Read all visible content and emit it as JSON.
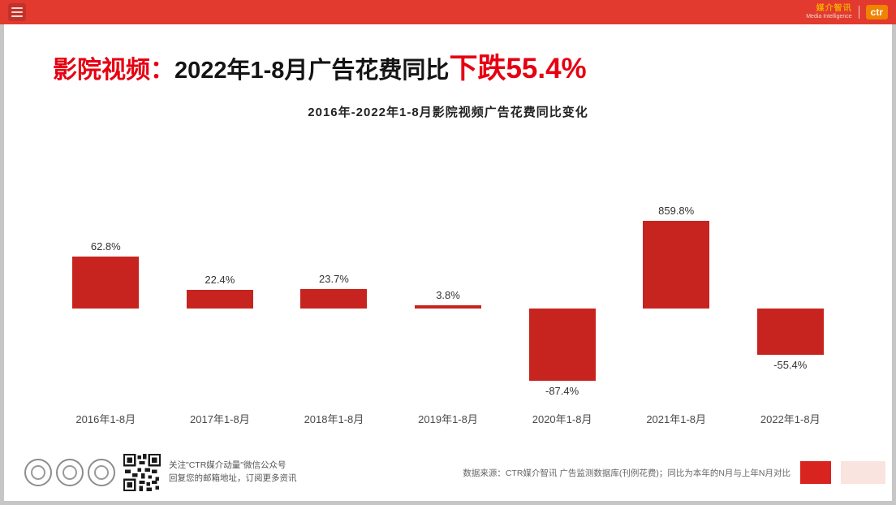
{
  "header": {
    "brand_cn": "媒介智讯",
    "brand_en": "Media Intelligence",
    "logo_text": "ctr"
  },
  "title": {
    "prefix": "影院视频：",
    "middle": "2022年1-8月广告花费同比",
    "highlight": "下跌55.4%"
  },
  "chart_data": {
    "type": "bar",
    "title": "2016年-2022年1-8月影院视频广告花费同比变化",
    "categories": [
      "2016年1-8月",
      "2017年1-8月",
      "2018年1-8月",
      "2019年1-8月",
      "2020年1-8月",
      "2021年1-8月",
      "2022年1-8月"
    ],
    "values": [
      62.8,
      22.4,
      23.7,
      3.8,
      -87.4,
      859.8,
      -55.4
    ],
    "value_labels": [
      "62.8%",
      "22.4%",
      "23.7%",
      "3.8%",
      "-87.4%",
      "859.8%",
      "-55.4%"
    ],
    "unit": "%",
    "xlabel": "",
    "ylabel": "",
    "bar_color": "#c8241f",
    "baseline": 0,
    "ylim": [
      -100,
      900
    ],
    "grid": false,
    "legend_position": "none"
  },
  "footer": {
    "qr_caption_line1": "关注\"CTR媒介动量\"微信公众号",
    "qr_caption_line2": "回复您的邮箱地址，订阅更多资讯",
    "source_text": "数据来源：CTR媒介智讯 广告监测数据库(刊例花费)；同比为本年的N月与上年N月对比"
  },
  "colors": {
    "header_red": "#e23a2e",
    "title_red": "#e60012",
    "bar_red": "#c8241f",
    "logo_orange": "#f08300"
  }
}
